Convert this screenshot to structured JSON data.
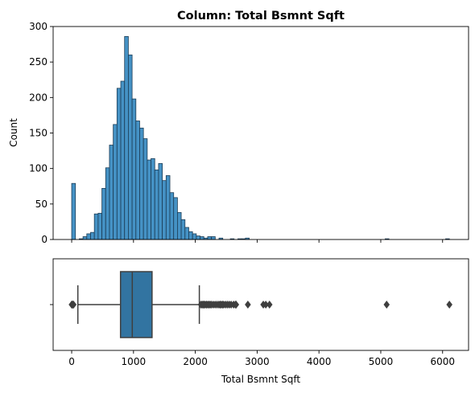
{
  "chart_data": [
    {
      "type": "histogram",
      "title": "Column: Total Bsmnt Sqft",
      "xlabel": "",
      "ylabel": "Count",
      "xlim": [
        -300,
        6420
      ],
      "ylim": [
        0,
        300
      ],
      "yticks": [
        0,
        50,
        100,
        150,
        200,
        250,
        300
      ],
      "xticks": [
        0,
        1000,
        2000,
        3000,
        4000,
        5000,
        6000
      ],
      "show_xtick_labels": false,
      "bin_width": 61.1,
      "bin_start": 0,
      "counts": [
        79,
        0,
        1,
        4,
        8,
        10,
        36,
        37,
        72,
        101,
        133,
        162,
        213,
        223,
        286,
        260,
        198,
        167,
        157,
        142,
        112,
        114,
        98,
        107,
        83,
        90,
        66,
        59,
        38,
        28,
        17,
        11,
        8,
        5,
        4,
        2,
        4,
        4,
        0,
        2,
        0,
        0,
        1,
        0,
        1,
        1,
        2,
        0,
        0,
        0,
        0,
        0,
        0,
        0,
        0,
        0,
        0,
        0,
        0,
        0,
        0,
        0,
        0,
        0,
        0,
        0,
        0,
        0,
        0,
        0,
        0,
        0,
        0,
        0,
        0,
        0,
        0,
        0,
        0,
        0,
        0,
        0,
        0,
        1,
        0,
        0,
        0,
        0,
        0,
        0,
        0,
        0,
        0,
        0,
        0,
        0,
        0,
        0,
        0,
        1
      ],
      "bar_color": "#3b8cc2",
      "edge_color": "#1c3c55"
    },
    {
      "type": "boxplot",
      "xlabel": "Total Bsmnt Sqft",
      "xlim": [
        -300,
        6420
      ],
      "xticks": [
        0,
        1000,
        2000,
        3000,
        4000,
        5000,
        6000
      ],
      "xtick_labels": [
        "0",
        "1000",
        "2000",
        "3000",
        "4000",
        "5000",
        "6000"
      ],
      "whisker_low": 100,
      "q1": 790,
      "median": 980,
      "q3": 1300,
      "whisker_high": 2065,
      "outliers": [
        0,
        10,
        20,
        30,
        2090,
        2110,
        2125,
        2140,
        2160,
        2180,
        2200,
        2220,
        2240,
        2260,
        2290,
        2320,
        2350,
        2380,
        2400,
        2420,
        2440,
        2460,
        2490,
        2520,
        2550,
        2580,
        2620,
        2650,
        2660,
        2850,
        3100,
        3140,
        3200,
        5095,
        6110
      ],
      "box_color": "#3274a1",
      "line_color": "#3f3f3f"
    }
  ]
}
